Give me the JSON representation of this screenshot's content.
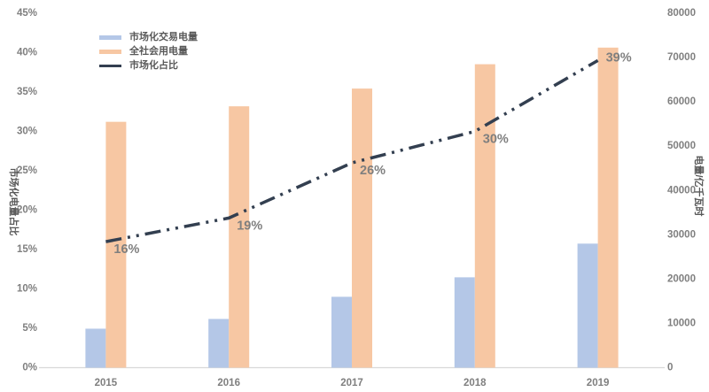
{
  "chart_data": {
    "type": "bar",
    "subtype": "combo-bar-line-dual-axis",
    "categories": [
      "2015",
      "2016",
      "2017",
      "2018",
      "2019"
    ],
    "series": [
      {
        "name": "市场化交易电量",
        "type": "bar",
        "axis": "right",
        "color": "#B4C7E7",
        "values": [
          8800,
          11000,
          16000,
          20400,
          28000
        ]
      },
      {
        "name": "全社会用电量",
        "type": "bar",
        "axis": "right",
        "color": "#F7C7A3",
        "values": [
          55500,
          59000,
          63000,
          68500,
          72250
        ]
      },
      {
        "name": "市场化占比",
        "type": "line",
        "axis": "left",
        "color": "#333F50",
        "line_style": "dash-dot-dot",
        "values": [
          16,
          19,
          26,
          30,
          39
        ],
        "labels": [
          "16%",
          "19%",
          "26%",
          "30%",
          "39%"
        ]
      }
    ],
    "left_axis": {
      "title": "市场化电量占比",
      "min": 0,
      "max": 45,
      "step": 5,
      "tick_labels": [
        "0%",
        "5%",
        "10%",
        "15%",
        "20%",
        "25%",
        "30%",
        "35%",
        "40%",
        "45%"
      ]
    },
    "right_axis": {
      "title": "电量/亿千瓦时",
      "min": 0,
      "max": 80000,
      "step": 10000,
      "tick_labels": [
        "0",
        "10000",
        "20000",
        "30000",
        "40000",
        "50000",
        "60000",
        "70000",
        "80000"
      ]
    },
    "legend": {
      "position": "top-left",
      "orientation": "vertical"
    },
    "grid": "off",
    "styles": {
      "tick_color": "#7F7F7F",
      "data_label_color": "#7F7F7F",
      "axis_line_color": "#D9D9D9",
      "background": "#FFFFFF"
    }
  }
}
